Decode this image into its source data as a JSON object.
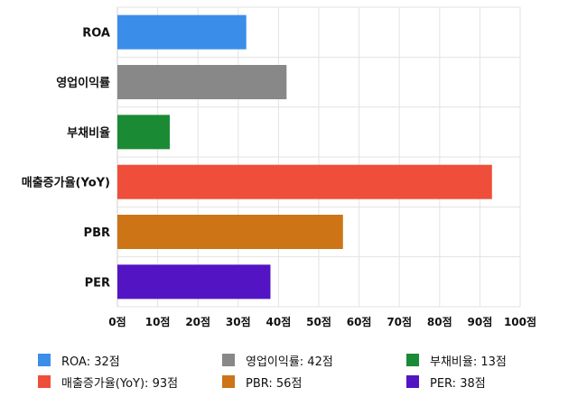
{
  "chart_data": {
    "type": "bar",
    "orientation": "horizontal",
    "categories": [
      "ROA",
      "영업이익률",
      "부채비율",
      "매출증가율(YoY)",
      "PBR",
      "PER"
    ],
    "values": [
      32,
      42,
      13,
      93,
      56,
      38
    ],
    "colors": [
      "#3a8eea",
      "#888888",
      "#1a8b34",
      "#ee4e3a",
      "#cc7416",
      "#5315c3"
    ],
    "xlim": [
      0,
      100
    ],
    "ticks": [
      0,
      10,
      20,
      30,
      40,
      50,
      60,
      70,
      80,
      90,
      100
    ],
    "tick_labels": [
      "0점",
      "10점",
      "20점",
      "30점",
      "40점",
      "50점",
      "60점",
      "70점",
      "80점",
      "90점",
      "100점"
    ],
    "grid": true,
    "legend_position": "bottom",
    "legend": [
      {
        "label": "ROA: 32점",
        "color": "#3a8eea"
      },
      {
        "label": "영업이익률: 42점",
        "color": "#888888"
      },
      {
        "label": "부채비율: 13점",
        "color": "#1a8b34"
      },
      {
        "label": "매출증가율(YoY): 93점",
        "color": "#ee4e3a"
      },
      {
        "label": "PBR: 56점",
        "color": "#cc7416"
      },
      {
        "label": "PER: 38점",
        "color": "#5315c3"
      }
    ]
  }
}
